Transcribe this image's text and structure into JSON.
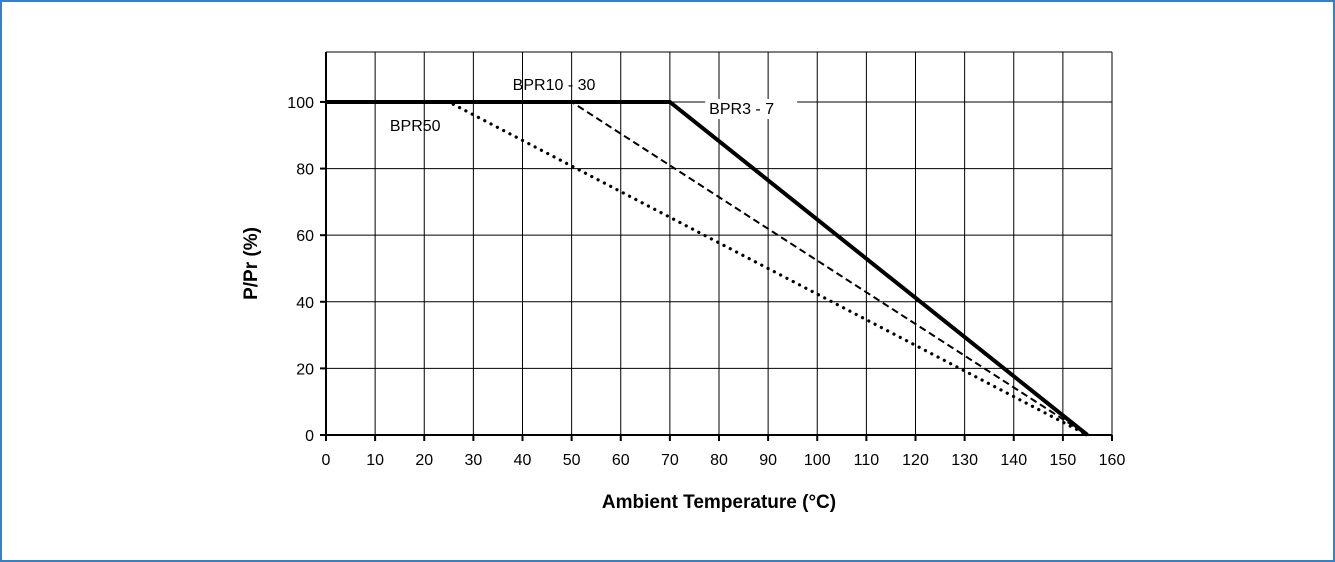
{
  "chart_data": {
    "type": "line",
    "title": "",
    "xlabel": "Ambient Temperature (°C)",
    "ylabel": "P/Pr (%)",
    "xlim": [
      0,
      160
    ],
    "ylim": [
      0,
      115
    ],
    "xticks": [
      0,
      10,
      20,
      30,
      40,
      50,
      60,
      70,
      80,
      90,
      100,
      110,
      120,
      130,
      140,
      150,
      160
    ],
    "yticks": [
      0,
      20,
      40,
      60,
      80,
      100
    ],
    "grid": true,
    "series": [
      {
        "name": "BPR3 - 7",
        "style": "solid",
        "x": [
          0,
          70,
          155
        ],
        "y": [
          100,
          100,
          0
        ]
      },
      {
        "name": "BPR10 - 30",
        "style": "dashed",
        "x": [
          0,
          50,
          155
        ],
        "y": [
          100,
          100,
          0
        ]
      },
      {
        "name": "BPR50",
        "style": "dotted",
        "x": [
          0,
          25,
          155
        ],
        "y": [
          100,
          100,
          0
        ]
      }
    ]
  }
}
